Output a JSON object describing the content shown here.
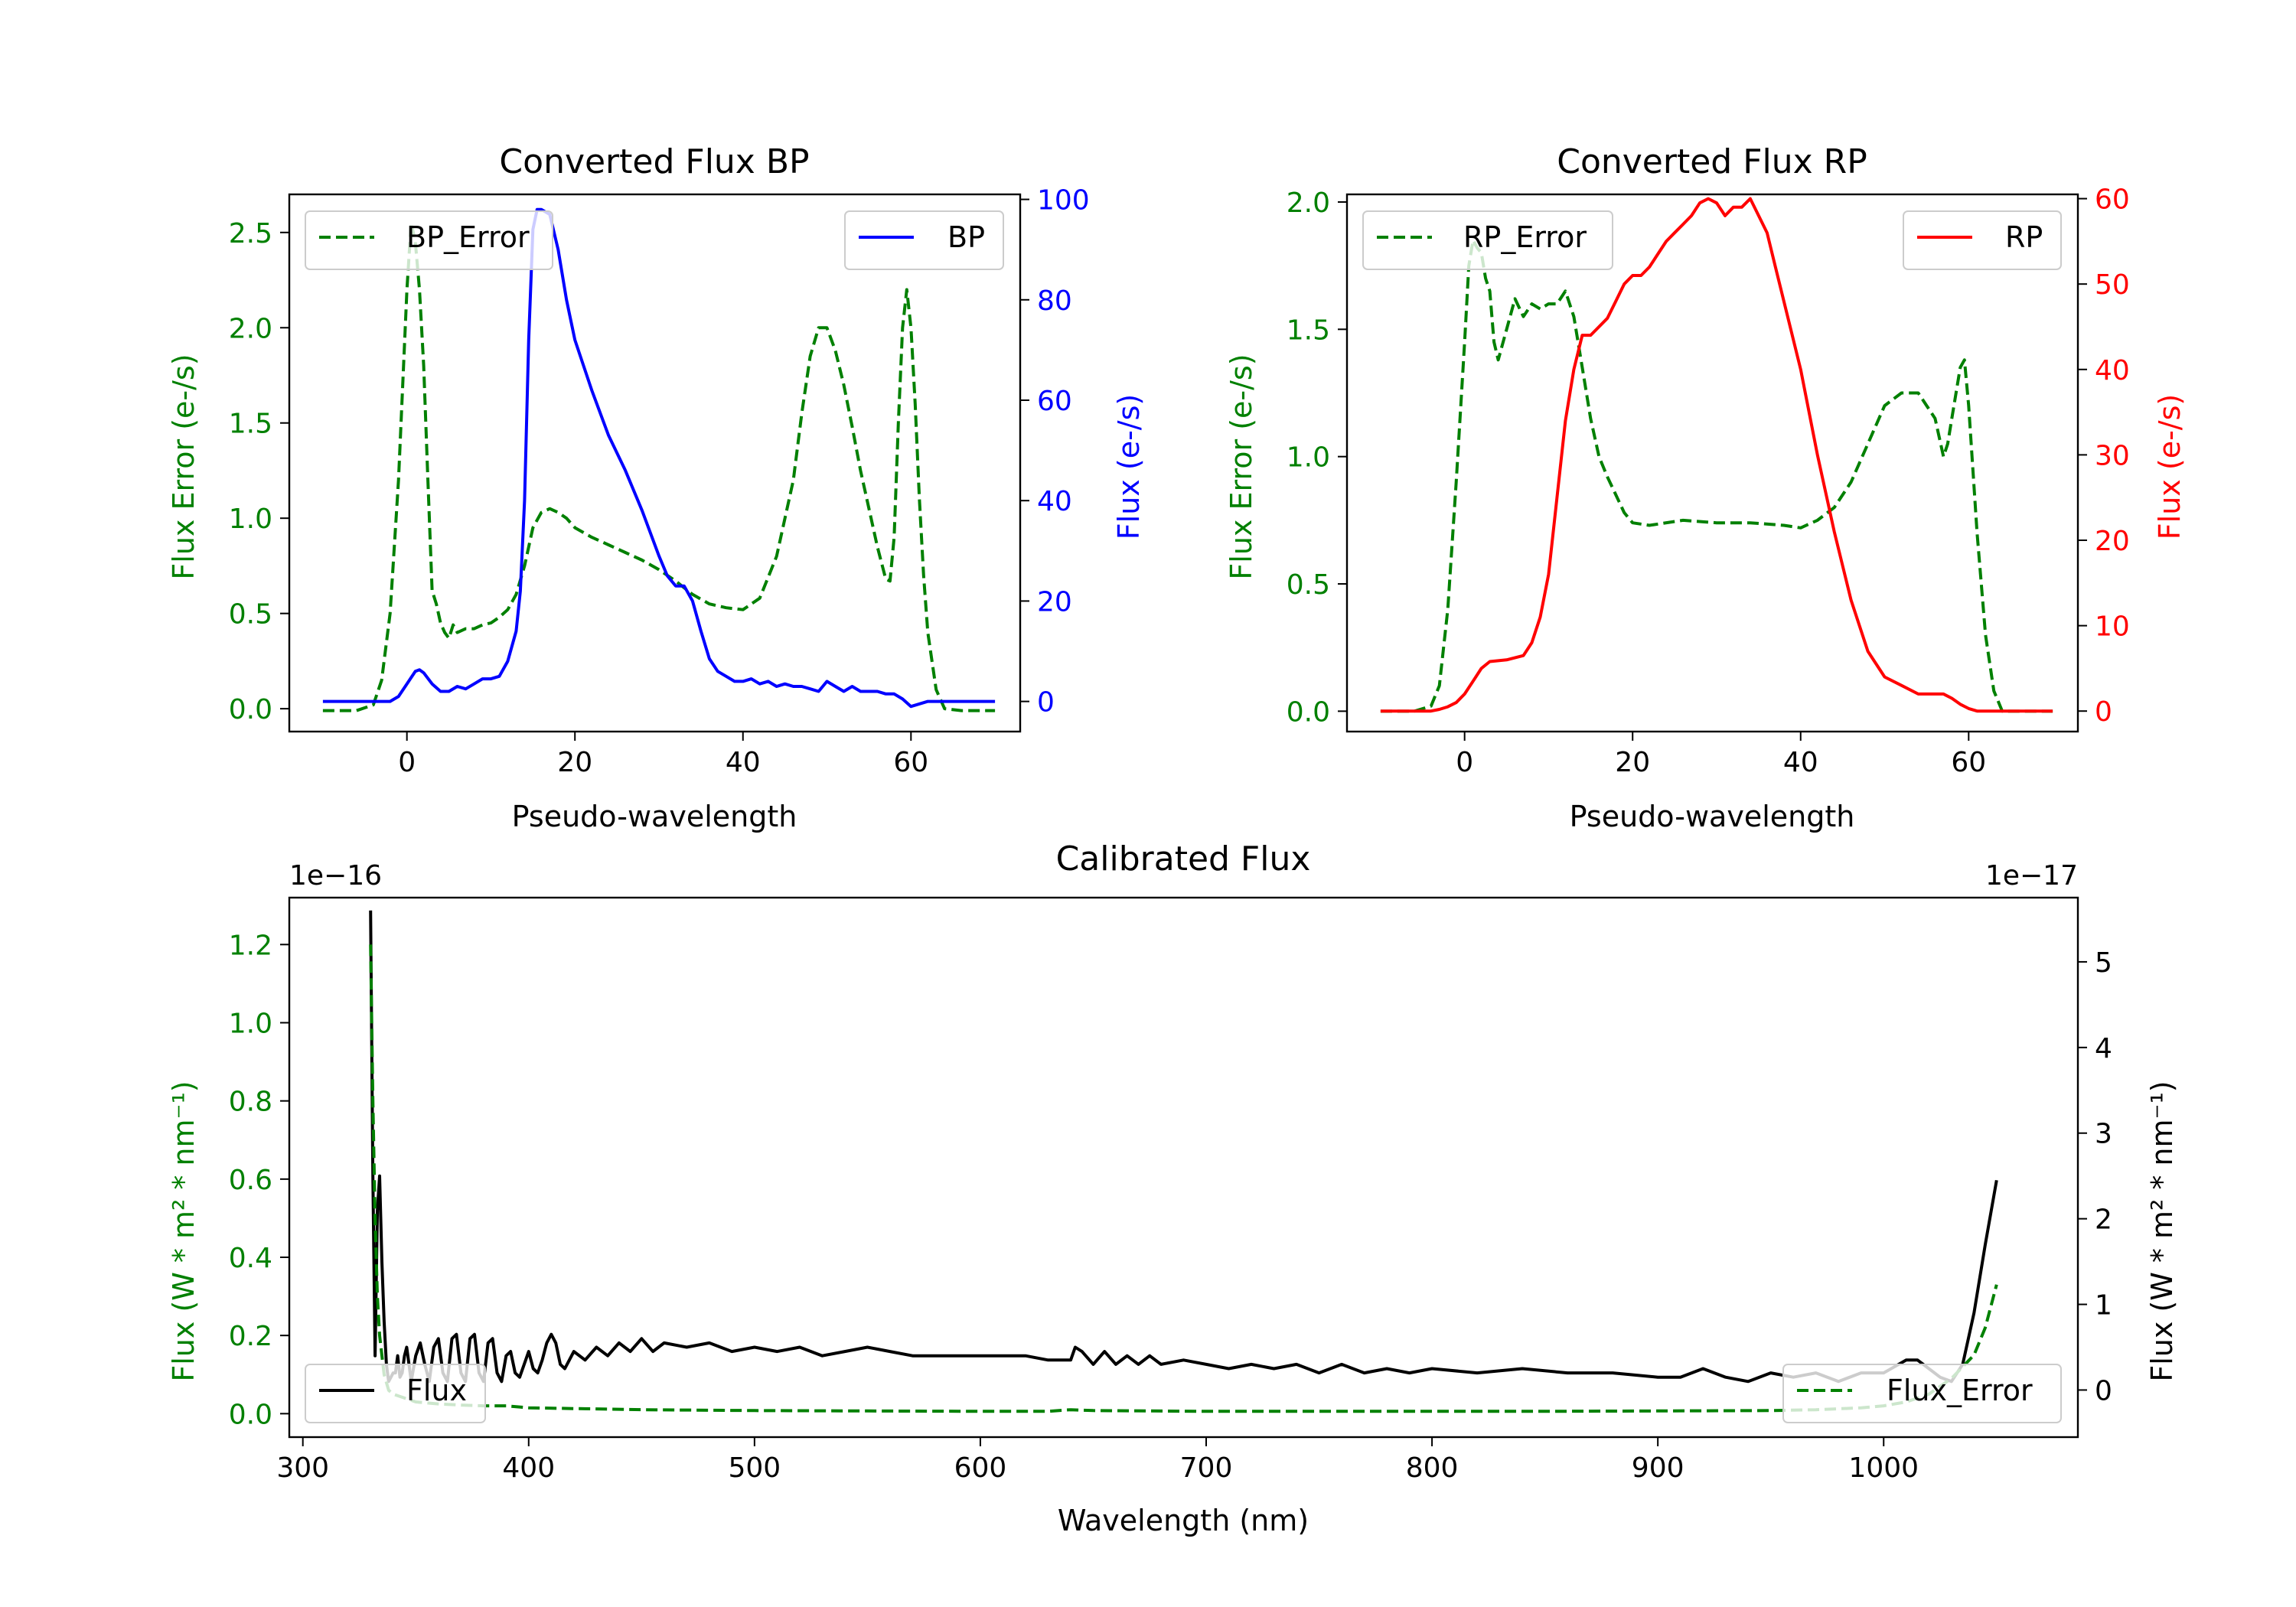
{
  "colors": {
    "error": "#008000",
    "bp": "#0000ff",
    "rp": "#ff0000",
    "flux": "#000000"
  },
  "chart_data": [
    {
      "type": "line",
      "title": "Converted Flux BP",
      "xlabel": "Pseudo-wavelength",
      "ylabel_left": "Flux Error (e-/s)",
      "ylabel_right": "Flux (e-/s)",
      "xlim": [
        -14,
        73
      ],
      "ylim_left": [
        -0.12,
        2.7
      ],
      "ylim_right": [
        -6,
        101
      ],
      "xticks": [
        "0",
        "20",
        "40",
        "60"
      ],
      "yticks_left": [
        "0.0",
        "0.5",
        "1.0",
        "1.5",
        "2.0",
        "2.5"
      ],
      "yticks_right": [
        "0",
        "20",
        "40",
        "60",
        "80",
        "100"
      ],
      "legend_left": "BP_Error",
      "legend_right": "BP",
      "series": [
        {
          "name": "BP_Error",
          "axis": "left",
          "style": "dashed",
          "color": "#008000",
          "x": [
            -10,
            -6,
            -4,
            -3,
            -2,
            -1,
            0,
            0.5,
            1,
            1.5,
            2,
            2.5,
            3,
            3.5,
            4,
            4.5,
            5,
            5.5,
            6,
            7,
            8,
            9,
            10,
            11,
            12,
            13,
            14,
            15,
            16,
            17,
            18,
            19,
            20,
            22,
            24,
            26,
            28,
            30,
            32,
            34,
            36,
            38,
            40,
            42,
            44,
            46,
            47,
            48,
            49,
            50,
            51,
            52,
            53,
            54,
            55,
            56,
            57,
            57.5,
            58,
            58.5,
            59,
            59.5,
            60,
            60.5,
            61,
            61.5,
            62,
            63,
            64,
            66,
            70
          ],
          "y": [
            -0.01,
            -0.01,
            0.02,
            0.15,
            0.5,
            1.2,
            2.2,
            2.55,
            2.45,
            2.2,
            1.8,
            1.2,
            0.62,
            0.55,
            0.45,
            0.4,
            0.37,
            0.44,
            0.4,
            0.42,
            0.42,
            0.44,
            0.45,
            0.48,
            0.52,
            0.6,
            0.75,
            0.95,
            1.03,
            1.05,
            1.03,
            1.0,
            0.95,
            0.9,
            0.86,
            0.82,
            0.78,
            0.73,
            0.67,
            0.6,
            0.55,
            0.53,
            0.52,
            0.58,
            0.8,
            1.2,
            1.55,
            1.85,
            2.0,
            2.0,
            1.88,
            1.7,
            1.48,
            1.25,
            1.05,
            0.85,
            0.68,
            0.67,
            0.9,
            1.5,
            2.0,
            2.2,
            2.0,
            1.6,
            1.1,
            0.7,
            0.4,
            0.1,
            0.0,
            -0.01,
            -0.01
          ]
        },
        {
          "name": "BP",
          "axis": "right",
          "style": "solid",
          "color": "#0000ff",
          "x": [
            -10,
            -5,
            -2,
            -1,
            0,
            1,
            1.5,
            2,
            3,
            4,
            5,
            6,
            7,
            8,
            9,
            10,
            11,
            12,
            13,
            13.5,
            14,
            14.5,
            15,
            15.5,
            16,
            17,
            18,
            19,
            20,
            21,
            22,
            24,
            26,
            28,
            30,
            31,
            32,
            33,
            34,
            35,
            36,
            37,
            38,
            39,
            40,
            41,
            42,
            43,
            44,
            45,
            46,
            47,
            48,
            49,
            50,
            51,
            52,
            53,
            54,
            55,
            56,
            57,
            58,
            59,
            60,
            62,
            66,
            70
          ],
          "y": [
            0,
            0,
            0,
            1,
            3.5,
            6,
            6.3,
            5.7,
            3.5,
            2,
            2,
            3,
            2.5,
            3.5,
            4.5,
            4.5,
            5,
            8,
            14,
            22,
            40,
            72,
            94,
            98,
            98,
            97,
            90,
            80,
            72,
            67,
            62,
            53,
            46,
            38,
            29,
            25,
            23,
            23,
            20,
            14,
            8.5,
            6,
            5,
            4,
            4,
            4.5,
            3.5,
            4,
            3,
            3.5,
            3,
            3,
            2.5,
            2,
            4,
            3,
            2,
            3,
            2,
            2,
            2,
            1.5,
            1.5,
            0.5,
            -1,
            0,
            0,
            0
          ]
        }
      ]
    },
    {
      "type": "line",
      "title": "Converted Flux RP",
      "xlabel": "Pseudo-wavelength",
      "ylabel_left": "Flux Error (e-/s)",
      "ylabel_right": "Flux (e-/s)",
      "xlim": [
        -14,
        73
      ],
      "ylim_left": [
        -0.08,
        2.03
      ],
      "ylim_right": [
        -2.4,
        60.5
      ],
      "xticks": [
        "0",
        "20",
        "40",
        "60"
      ],
      "yticks_left": [
        "0.0",
        "0.5",
        "1.0",
        "1.5",
        "2.0"
      ],
      "yticks_right": [
        "0",
        "10",
        "20",
        "30",
        "40",
        "50",
        "60"
      ],
      "legend_left": "RP_Error",
      "legend_right": "RP",
      "series": [
        {
          "name": "RP_Error",
          "axis": "left",
          "style": "dashed",
          "color": "#008000",
          "x": [
            -10,
            -6,
            -4,
            -3,
            -2,
            -1,
            0,
            0.5,
            1,
            1.5,
            2,
            2.5,
            3,
            3.5,
            4,
            5,
            6,
            7,
            8,
            9,
            10,
            11,
            12,
            13,
            14,
            15,
            16,
            17,
            18,
            19,
            20,
            22,
            26,
            30,
            34,
            38,
            40,
            42,
            44,
            46,
            48,
            50,
            52,
            54,
            55,
            56,
            57,
            57.5,
            58,
            59,
            59.5,
            60,
            61,
            62,
            63,
            64,
            66,
            70
          ],
          "y": [
            0,
            0,
            0.02,
            0.1,
            0.4,
            0.9,
            1.45,
            1.75,
            1.85,
            1.82,
            1.8,
            1.7,
            1.65,
            1.45,
            1.38,
            1.5,
            1.62,
            1.55,
            1.6,
            1.58,
            1.6,
            1.6,
            1.65,
            1.55,
            1.35,
            1.15,
            1.0,
            0.92,
            0.85,
            0.78,
            0.74,
            0.73,
            0.75,
            0.74,
            0.74,
            0.73,
            0.72,
            0.75,
            0.8,
            0.9,
            1.05,
            1.2,
            1.25,
            1.25,
            1.2,
            1.15,
            1.0,
            1.05,
            1.15,
            1.35,
            1.38,
            1.2,
            0.7,
            0.3,
            0.08,
            0.0,
            0.0,
            0.0
          ]
        },
        {
          "name": "RP",
          "axis": "right",
          "style": "solid",
          "color": "#ff0000",
          "x": [
            -10,
            -4,
            -3,
            -2,
            -1,
            0,
            1,
            2,
            3,
            5,
            7,
            8,
            9,
            10,
            11,
            12,
            13,
            14,
            15,
            16,
            17,
            18,
            19,
            20,
            21,
            22,
            23,
            24,
            25,
            26,
            27,
            28,
            29,
            30,
            31,
            32,
            33,
            34,
            35,
            36,
            37,
            38,
            40,
            42,
            44,
            46,
            48,
            50,
            52,
            54,
            56,
            57,
            58,
            59,
            60,
            61,
            62,
            63,
            64,
            66,
            70
          ],
          "y": [
            0,
            0,
            0.2,
            0.5,
            1,
            2,
            3.5,
            5,
            5.8,
            6,
            6.5,
            8,
            11,
            16,
            25,
            34,
            40,
            44,
            44,
            45,
            46,
            48,
            50,
            51,
            51,
            52,
            53.5,
            55,
            56,
            57,
            58,
            59.5,
            60,
            59.5,
            58,
            59,
            59,
            60,
            58,
            56,
            52,
            48,
            40,
            30,
            21,
            13,
            7,
            4,
            3,
            2,
            2,
            2,
            1.5,
            0.8,
            0.3,
            0,
            0,
            0,
            0,
            0,
            0
          ]
        }
      ]
    },
    {
      "type": "line",
      "title": "Calibrated Flux",
      "xlabel": "Wavelength (nm)",
      "ylabel_left": "Flux (W * m² * nm⁻¹)",
      "ylabel_right": "Flux (W * m² * nm⁻¹)",
      "left_offset": "1e−16",
      "right_offset": "1e−17",
      "xlim": [
        294,
        1086
      ],
      "ylim_left": [
        -0.06,
        1.32
      ],
      "ylim_right": [
        -0.55,
        5.75
      ],
      "xticks": [
        "300",
        "400",
        "500",
        "600",
        "700",
        "800",
        "900",
        "1000"
      ],
      "yticks_left": [
        "0.0",
        "0.2",
        "0.4",
        "0.6",
        "0.8",
        "1.0",
        "1.2"
      ],
      "yticks_right": [
        "0",
        "1",
        "2",
        "3",
        "4",
        "5"
      ],
      "legend_left": "Flux",
      "legend_right": "Flux_Error",
      "series": [
        {
          "name": "Flux",
          "axis": "right",
          "style": "solid",
          "color": "#000000",
          "x": [
            330,
            331,
            332,
            333,
            334,
            335,
            336,
            337,
            338,
            339,
            340,
            341,
            342,
            343,
            344,
            345,
            346,
            347,
            348,
            350,
            352,
            354,
            356,
            358,
            360,
            362,
            364,
            366,
            368,
            370,
            372,
            374,
            376,
            378,
            380,
            382,
            384,
            386,
            388,
            390,
            392,
            394,
            396,
            398,
            400,
            402,
            404,
            406,
            408,
            410,
            412,
            414,
            416,
            418,
            420,
            425,
            430,
            435,
            440,
            445,
            450,
            455,
            460,
            470,
            480,
            490,
            500,
            510,
            520,
            530,
            540,
            550,
            560,
            570,
            580,
            590,
            600,
            610,
            620,
            630,
            640,
            642,
            645,
            650,
            655,
            660,
            665,
            670,
            675,
            680,
            690,
            700,
            710,
            720,
            730,
            740,
            750,
            760,
            770,
            780,
            790,
            800,
            820,
            840,
            860,
            880,
            900,
            910,
            920,
            930,
            940,
            950,
            960,
            970,
            980,
            990,
            1000,
            1010,
            1015,
            1020,
            1025,
            1030,
            1035,
            1040,
            1045,
            1050
          ],
          "y": [
            5.6,
            2.5,
            0.4,
            2.1,
            2.5,
            1.5,
            0.8,
            0.3,
            0.1,
            0.15,
            0.2,
            0.2,
            0.4,
            0.15,
            0.2,
            0.4,
            0.5,
            0.3,
            0.1,
            0.4,
            0.55,
            0.3,
            0.1,
            0.5,
            0.6,
            0.2,
            0.1,
            0.6,
            0.65,
            0.2,
            0.1,
            0.6,
            0.65,
            0.2,
            0.1,
            0.55,
            0.6,
            0.2,
            0.1,
            0.4,
            0.45,
            0.2,
            0.15,
            0.3,
            0.45,
            0.25,
            0.2,
            0.35,
            0.55,
            0.65,
            0.55,
            0.3,
            0.25,
            0.35,
            0.45,
            0.35,
            0.5,
            0.4,
            0.55,
            0.45,
            0.6,
            0.45,
            0.55,
            0.5,
            0.55,
            0.45,
            0.5,
            0.45,
            0.5,
            0.4,
            0.45,
            0.5,
            0.45,
            0.4,
            0.4,
            0.4,
            0.4,
            0.4,
            0.4,
            0.35,
            0.35,
            0.5,
            0.45,
            0.3,
            0.45,
            0.3,
            0.4,
            0.3,
            0.4,
            0.3,
            0.35,
            0.3,
            0.25,
            0.3,
            0.25,
            0.3,
            0.2,
            0.3,
            0.2,
            0.25,
            0.2,
            0.25,
            0.2,
            0.25,
            0.2,
            0.2,
            0.15,
            0.15,
            0.25,
            0.15,
            0.1,
            0.2,
            0.15,
            0.2,
            0.1,
            0.2,
            0.2,
            0.35,
            0.35,
            0.25,
            0.15,
            0.1,
            0.3,
            0.9,
            1.7,
            2.45
          ]
        },
        {
          "name": "Flux_Error",
          "axis": "left",
          "style": "dashed",
          "color": "#008000",
          "x": [
            330,
            331,
            332,
            333,
            334,
            336,
            338,
            340,
            345,
            350,
            360,
            370,
            380,
            390,
            400,
            420,
            450,
            500,
            550,
            600,
            630,
            640,
            650,
            700,
            750,
            800,
            850,
            900,
            950,
            970,
            990,
            1000,
            1010,
            1020,
            1030,
            1040,
            1045,
            1050
          ],
          "y": [
            1.2,
            0.8,
            0.5,
            0.3,
            0.2,
            0.1,
            0.06,
            0.05,
            0.04,
            0.03,
            0.025,
            0.022,
            0.02,
            0.02,
            0.015,
            0.013,
            0.01,
            0.008,
            0.007,
            0.006,
            0.006,
            0.01,
            0.008,
            0.006,
            0.006,
            0.006,
            0.006,
            0.007,
            0.008,
            0.01,
            0.015,
            0.02,
            0.03,
            0.05,
            0.09,
            0.15,
            0.22,
            0.33
          ]
        }
      ]
    }
  ]
}
